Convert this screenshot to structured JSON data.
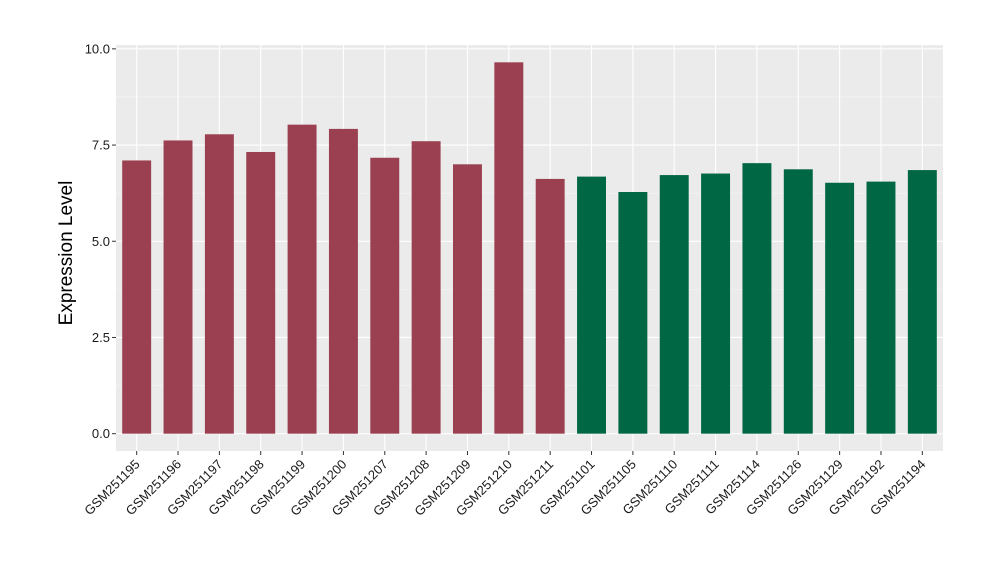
{
  "chart_data": {
    "type": "bar",
    "title": "",
    "xlabel": "",
    "ylabel": "Expression Level",
    "ylim": [
      -0.45,
      10.1
    ],
    "yticks": [
      0.0,
      2.5,
      5.0,
      7.5,
      10.0
    ],
    "ytick_labels": [
      "0.0",
      "2.5",
      "5.0",
      "7.5",
      "10.0"
    ],
    "grid": true,
    "legend": "none",
    "categories": [
      "GSM251195",
      "GSM251196",
      "GSM251197",
      "GSM251198",
      "GSM251199",
      "GSM251200",
      "GSM251207",
      "GSM251208",
      "GSM251209",
      "GSM251210",
      "GSM251211",
      "GSM251101",
      "GSM251105",
      "GSM251110",
      "GSM251111",
      "GSM251114",
      "GSM251126",
      "GSM251129",
      "GSM251192",
      "GSM251194"
    ],
    "values": [
      7.1,
      7.62,
      7.78,
      7.32,
      8.03,
      7.92,
      7.17,
      7.6,
      7.0,
      9.65,
      6.62,
      6.68,
      6.28,
      6.72,
      6.76,
      7.03,
      6.87,
      6.52,
      6.55,
      6.85
    ],
    "groups": [
      "red",
      "red",
      "red",
      "red",
      "red",
      "red",
      "red",
      "red",
      "red",
      "red",
      "red",
      "green",
      "green",
      "green",
      "green",
      "green",
      "green",
      "green",
      "green",
      "green"
    ],
    "colors": {
      "red": "#9a4050",
      "green": "#006744"
    }
  }
}
